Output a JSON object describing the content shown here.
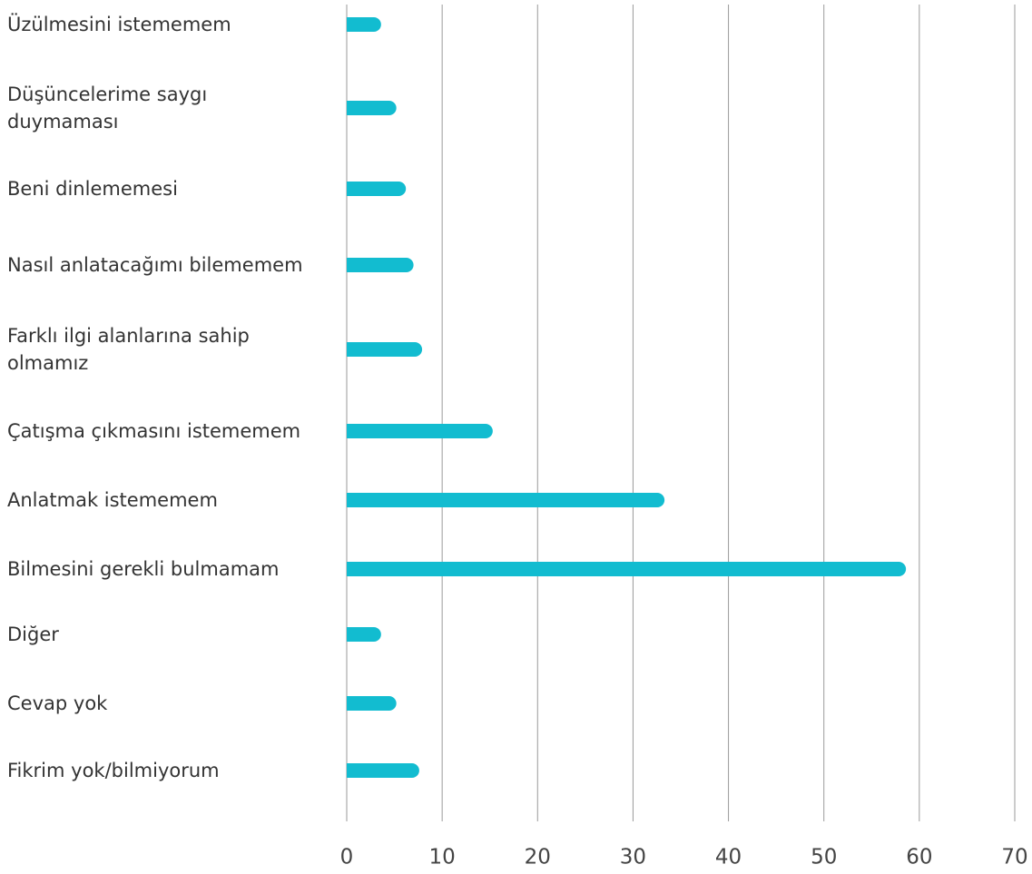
{
  "chart_data": {
    "type": "bar",
    "orientation": "horizontal",
    "categories": [
      "Üzülmesini istememem",
      "Düşüncelerime saygı duymaması",
      "Beni dinlememesi",
      "Nasıl anlatacağımı bilememem",
      "Farklı ilgi alanlarına sahip olmamız",
      "Çatışma çıkmasını istememem",
      "Anlatmak istememem",
      "Bilmesini gerekli bulmamam",
      "Diğer",
      "Cevap yok",
      "Fikrim yok/bilmiyorum"
    ],
    "values": [
      3.6,
      5.2,
      6.2,
      7.0,
      7.9,
      15.3,
      33.3,
      58.6,
      3.6,
      5.2,
      7.6
    ],
    "color": "#12bcd0",
    "xlim": [
      0,
      70
    ],
    "xticks": [
      0,
      10,
      20,
      30,
      40,
      50,
      60,
      70
    ],
    "grid": true
  }
}
